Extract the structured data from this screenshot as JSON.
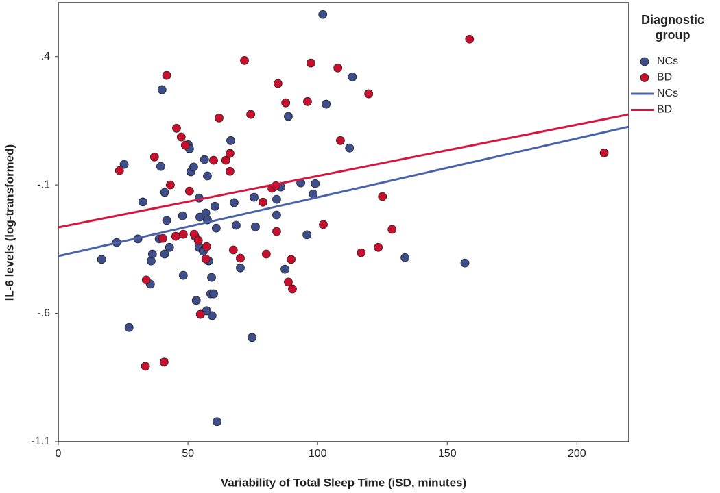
{
  "chart_data": {
    "type": "scatter",
    "x_label": "Variability of Total Sleep Time (iSD, minutes)",
    "y_label": "IL-6 levels (log-transformed)",
    "legend_title": "Diagnostic group",
    "legend": "right",
    "grid": false,
    "xlim": [
      0,
      220
    ],
    "ylim": [
      -1.1,
      0.61
    ],
    "xticks": [
      0,
      50,
      100,
      150,
      200
    ],
    "yticks": [
      {
        "value": 0.4,
        "label": ".4"
      },
      {
        "value": -0.1,
        "label": "-.1"
      },
      {
        "value": -0.6,
        "label": "-.6"
      },
      -1.1
    ],
    "series": [
      {
        "name": "NCs",
        "type": "scatter",
        "color": "#3d4e8a",
        "x": [
          102.0,
          16.7,
          25.4,
          27.3,
          22.5,
          30.7,
          32.6,
          35.5,
          35.8,
          36.3,
          40.0,
          39.5,
          41.0,
          41.0,
          41.8,
          42.9,
          38.9,
          48.2,
          47.9,
          50.1,
          50.6,
          51.1,
          52.2,
          52.7,
          53.2,
          54.3,
          54.6,
          54.3,
          55.9,
          56.4,
          56.9,
          57.5,
          57.5,
          58.0,
          59.1,
          58.8,
          59.3,
          59.9,
          60.4,
          60.9,
          61.2,
          66.5,
          67.8,
          68.6,
          70.2,
          74.7,
          75.5,
          76.0,
          84.2,
          84.2,
          85.8,
          87.4,
          88.7,
          93.5,
          95.9,
          98.3,
          99.1,
          103.3,
          112.3,
          113.4,
          133.7,
          156.8,
          57.2
        ],
        "values": [
          0.564,
          -0.39,
          -0.02,
          -0.655,
          -0.324,
          -0.31,
          -0.166,
          -0.486,
          -0.396,
          -0.369,
          0.271,
          -0.028,
          -0.129,
          -0.369,
          -0.238,
          -0.343,
          -0.31,
          -0.452,
          -0.22,
          0.057,
          0.041,
          -0.049,
          -0.03,
          -0.3,
          -0.55,
          -0.343,
          -0.225,
          -0.151,
          -0.358,
          -0.001,
          -0.209,
          -0.236,
          -0.065,
          -0.396,
          -0.46,
          -0.524,
          -0.609,
          -0.524,
          -0.183,
          -0.268,
          -1.022,
          0.073,
          -0.169,
          -0.257,
          -0.423,
          -0.694,
          -0.148,
          -0.263,
          -0.156,
          -0.217,
          -0.108,
          -0.428,
          0.167,
          -0.092,
          -0.294,
          -0.135,
          -0.095,
          0.215,
          0.044,
          0.321,
          -0.383,
          -0.404,
          -0.59
        ]
      },
      {
        "name": "BD",
        "type": "scatter",
        "color": "#c8102e",
        "x": [
          158.6,
          210.5,
          23.6,
          33.9,
          33.6,
          37.1,
          40.8,
          41.8,
          43.2,
          45.6,
          47.4,
          49.0,
          50.6,
          40.3,
          45.3,
          48.2,
          52.4,
          54.0,
          54.8,
          56.9,
          57.2,
          59.9,
          62.0,
          64.6,
          66.2,
          66.2,
          67.5,
          70.2,
          71.8,
          74.2,
          78.9,
          80.2,
          82.4,
          83.9,
          84.2,
          84.7,
          87.7,
          88.7,
          89.8,
          90.3,
          96.1,
          97.4,
          102.2,
          107.8,
          108.8,
          116.8,
          119.7,
          123.4,
          125.0,
          128.7
        ],
        "values": [
          0.468,
          0.025,
          -0.044,
          -0.47,
          -0.806,
          0.009,
          -0.79,
          0.327,
          -0.1,
          0.121,
          0.087,
          0.055,
          -0.124,
          -0.308,
          -0.3,
          -0.292,
          -0.292,
          -0.316,
          -0.604,
          -0.388,
          -0.34,
          -0.004,
          0.161,
          -0.004,
          0.023,
          -0.047,
          -0.353,
          -0.385,
          0.385,
          0.175,
          -0.167,
          -0.369,
          -0.113,
          -0.103,
          -0.281,
          0.295,
          0.22,
          -0.478,
          -0.39,
          -0.505,
          0.225,
          0.375,
          -0.254,
          0.356,
          0.073,
          -0.364,
          0.255,
          -0.343,
          -0.145,
          -0.273
        ]
      },
      {
        "name": "NCs",
        "type": "line",
        "color": "#4a62a8",
        "x": [
          0,
          220
        ],
        "values": [
          -0.377,
          0.127
        ]
      },
      {
        "name": "BD",
        "type": "line",
        "color": "#d6163f",
        "x": [
          0,
          220
        ],
        "values": [
          -0.265,
          0.175
        ]
      }
    ]
  }
}
